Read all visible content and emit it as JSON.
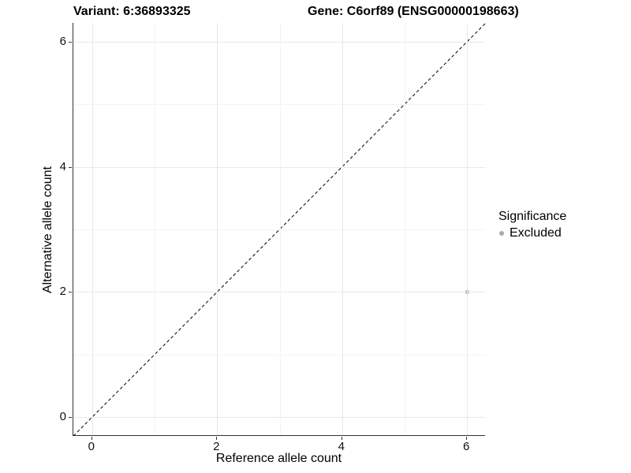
{
  "header": {
    "variant_title": "Variant: 6:36893325",
    "gene_title": "Gene: C6orf89 (ENSG00000198663)"
  },
  "legend": {
    "title": "Significance",
    "position": "right",
    "items": [
      {
        "label": "Excluded",
        "color": "#aaaaaa"
      }
    ]
  },
  "chart_data": {
    "type": "scatter",
    "title": "",
    "xlabel": "Reference allele count",
    "ylabel": "Alternative allele count",
    "xlim": [
      -0.3,
      6.3
    ],
    "ylim": [
      -0.3,
      6.3
    ],
    "xticks": [
      0,
      2,
      4,
      6
    ],
    "yticks": [
      0,
      2,
      4,
      6
    ],
    "x_minor_ticks": [
      1,
      3,
      5
    ],
    "y_minor_ticks": [
      1,
      3,
      5
    ],
    "grid": true,
    "legend_position": "right",
    "series": [
      {
        "name": "Excluded",
        "color": "#aaaaaa",
        "points": [
          {
            "x": 6,
            "y": 2
          }
        ]
      }
    ],
    "reference_line": {
      "type": "identity",
      "slope": 1,
      "intercept": 0,
      "style": "dashed",
      "color": "#000000"
    }
  },
  "colors": {
    "background": "#ffffff",
    "axis_line": "#333333",
    "grid_major": "#e8e8e8",
    "grid_minor": "#f4f4f4",
    "point": "#aaaaaa",
    "text": "#000000"
  }
}
